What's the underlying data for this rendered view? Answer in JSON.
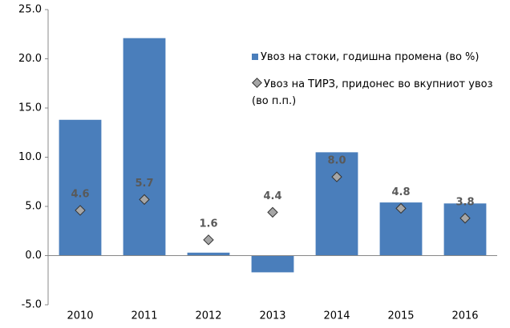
{
  "chart_data": {
    "type": "bar",
    "categories": [
      "2010",
      "2011",
      "2012",
      "2013",
      "2014",
      "2015",
      "2016"
    ],
    "series": [
      {
        "name": "Увоз на стоки, годишна промена (во %)",
        "type": "bar",
        "color": "#4a7ebb",
        "values": [
          13.8,
          22.1,
          0.3,
          -1.7,
          10.5,
          5.4,
          5.3
        ]
      },
      {
        "name": "Увоз на ТИРЗ, придонес во вкупниот увоз (во п.п.)",
        "type": "scatter",
        "color": "#a6a6a6",
        "values": [
          4.6,
          5.7,
          1.6,
          4.4,
          8.0,
          4.8,
          3.8
        ],
        "value_labels": [
          "4.6",
          "5.7",
          "1.6",
          "4.4",
          "8.0",
          "4.8",
          "3.8"
        ]
      }
    ],
    "ylim": [
      -5,
      25
    ],
    "yticks": [
      {
        "value": -5,
        "label": "-5.0"
      },
      {
        "value": 0,
        "label": "0.0"
      },
      {
        "value": 5,
        "label": "5.0"
      },
      {
        "value": 10,
        "label": "10.0"
      },
      {
        "value": 15,
        "label": "15.0"
      },
      {
        "value": 20,
        "label": "20.0"
      },
      {
        "value": 25,
        "label": "25.0"
      }
    ],
    "grid": false
  }
}
